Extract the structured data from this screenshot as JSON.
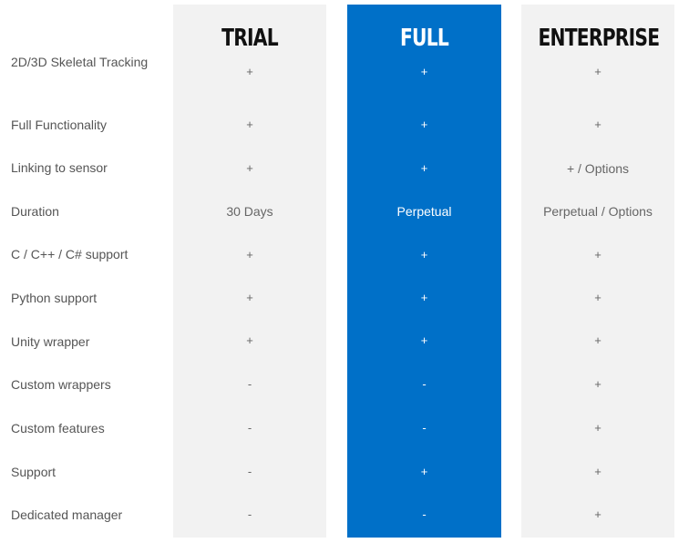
{
  "plans": [
    {
      "name": "TRIAL",
      "values": [
        "+",
        "+",
        "+",
        "30 Days",
        "+",
        "+",
        "+",
        "-",
        "-",
        "-",
        "-"
      ]
    },
    {
      "name": "FULL",
      "values": [
        "+",
        "+",
        "+",
        "Perpetual",
        "+",
        "+",
        "+",
        "-",
        "-",
        "+",
        "-"
      ]
    },
    {
      "name": "ENTERPRISE",
      "values": [
        "+",
        "+",
        "+ / Options",
        "Perpetual / Options",
        "+",
        "+",
        "+",
        "+",
        "+",
        "+",
        "+"
      ]
    }
  ],
  "features": [
    "2D/3D Skeletal Tracking",
    "Full Functionality",
    "Linking to sensor",
    "Duration",
    "C / C++ / C# support",
    "Python support",
    "Unity wrapper",
    "Custom wrappers",
    "Custom features",
    "Support",
    "Dedicated manager"
  ],
  "colors": {
    "highlight": "#0070c8",
    "panel": "#f2f2f2"
  }
}
